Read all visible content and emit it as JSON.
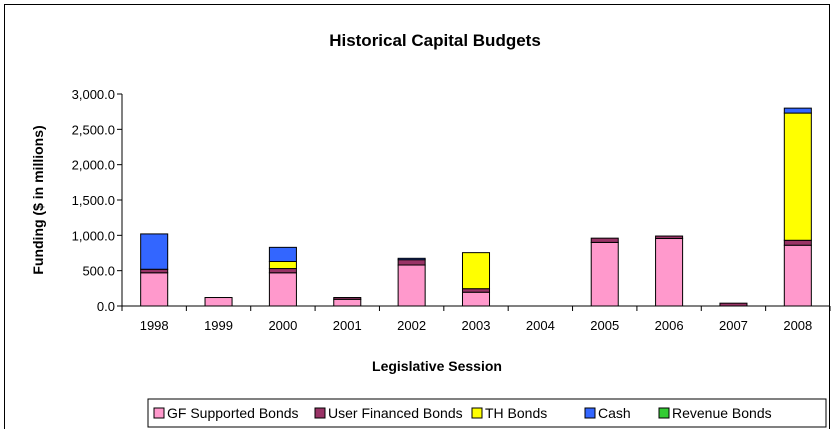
{
  "chart_data": {
    "type": "bar",
    "stacked": true,
    "title": "Historical Capital Budgets",
    "xlabel": "Legislative Session",
    "ylabel": "Funding ($ in millions)",
    "ylim": [
      0,
      3000
    ],
    "yticks": [
      "0.0",
      "500.0",
      "1,000.0",
      "1,500.0",
      "2,000.0",
      "2,500.0",
      "3,000.0"
    ],
    "grid": false,
    "legend_position": "bottom",
    "categories": [
      "1998",
      "1999",
      "2000",
      "2001",
      "2002",
      "2003",
      "2004",
      "2005",
      "2006",
      "2007",
      "2008"
    ],
    "series": [
      {
        "name": "GF Supported Bonds",
        "color": "#FF99CC",
        "values": [
          470,
          120,
          470,
          95,
          580,
          195,
          0,
          900,
          955,
          0,
          860
        ]
      },
      {
        "name": "User Financed Bonds",
        "color": "#993366",
        "values": [
          50,
          0,
          60,
          25,
          75,
          50,
          0,
          60,
          35,
          40,
          70
        ]
      },
      {
        "name": "TH Bonds",
        "color": "#FFFF00",
        "values": [
          0,
          0,
          100,
          0,
          0,
          510,
          0,
          0,
          0,
          0,
          1800
        ]
      },
      {
        "name": "Cash",
        "color": "#3366FF",
        "values": [
          500,
          0,
          200,
          0,
          20,
          0,
          0,
          0,
          0,
          0,
          70
        ]
      },
      {
        "name": "Revenue Bonds",
        "color": "#33CC33",
        "values": [
          0,
          0,
          0,
          0,
          0,
          0,
          0,
          0,
          0,
          0,
          0
        ]
      }
    ]
  }
}
